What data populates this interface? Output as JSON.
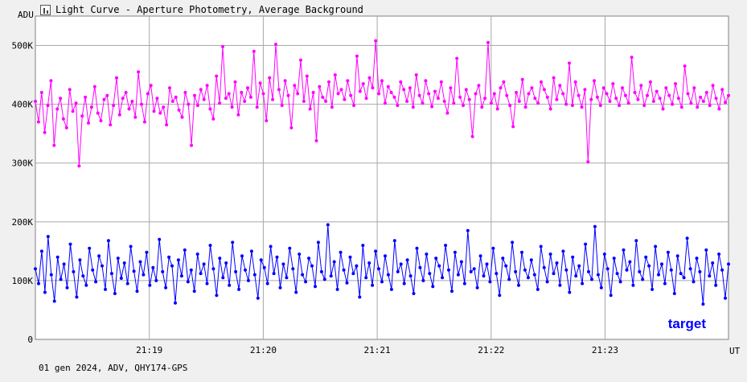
{
  "window": {
    "title": "Light Curve - Aperture Photometry, Average Background"
  },
  "icons": {
    "title_icon": "chart-icon"
  },
  "footer": {
    "text": "01 gen 2024, ADV, QHY174-GPS"
  },
  "chart_data": {
    "type": "line",
    "title": "Light Curve - Aperture Photometry, Average Background",
    "ylabel": "ADU",
    "xlabel": "UT",
    "ylim": [
      0,
      550000
    ],
    "xlim": [
      "21:18:00",
      "21:24:05"
    ],
    "grid": true,
    "y_ticks": [
      {
        "value": 0,
        "label": "0"
      },
      {
        "value": 100000,
        "label": "100K"
      },
      {
        "value": 200000,
        "label": "200K"
      },
      {
        "value": 300000,
        "label": "300K"
      },
      {
        "value": 400000,
        "label": "400K"
      },
      {
        "value": 500000,
        "label": "500K"
      }
    ],
    "x_ticks": [
      "21:19",
      "21:20",
      "21:21",
      "21:22",
      "21:23"
    ],
    "series": [
      {
        "name": "",
        "color": "#ff00ff",
        "x_start": "21:18:00",
        "x_end": "21:24:05",
        "values": [
          405000,
          370000,
          420000,
          352000,
          398000,
          440000,
          330000,
          392000,
          410000,
          375000,
          360000,
          425000,
          388000,
          402000,
          295000,
          380000,
          412000,
          368000,
          395000,
          430000,
          385000,
          372000,
          408000,
          415000,
          365000,
          398000,
          445000,
          382000,
          410000,
          420000,
          392000,
          405000,
          378000,
          455000,
          400000,
          370000,
          418000,
          432000,
          388000,
          410000,
          385000,
          395000,
          365000,
          428000,
          405000,
          412000,
          390000,
          378000,
          420000,
          400000,
          330000,
          415000,
          398000,
          425000,
          408000,
          432000,
          392000,
          375000,
          448000,
          402000,
          498000,
          410000,
          418000,
          395000,
          438000,
          382000,
          420000,
          405000,
          428000,
          412000,
          490000,
          395000,
          436000,
          418000,
          372000,
          445000,
          408000,
          502000,
          425000,
          398000,
          440000,
          415000,
          360000,
          432000,
          418000,
          475000,
          405000,
          448000,
          392000,
          420000,
          338000,
          430000,
          412000,
          405000,
          438000,
          395000,
          450000,
          418000,
          425000,
          408000,
          440000,
          415000,
          398000,
          482000,
          422000,
          435000,
          410000,
          445000,
          428000,
          508000,
          418000,
          440000,
          402000,
          430000,
          420000,
          412000,
          398000,
          438000,
          425000,
          405000,
          428000,
          395000,
          450000,
          415000,
          402000,
          440000,
          418000,
          396000,
          422000,
          410000,
          438000,
          405000,
          385000,
          428000,
          402000,
          478000,
          412000,
          398000,
          425000,
          408000,
          345000,
          418000,
          432000,
          395000,
          410000,
          505000,
          402000,
          418000,
          392000,
          428000,
          438000,
          415000,
          398000,
          362000,
          420000,
          405000,
          442000,
          395000,
          418000,
          428000,
          410000,
          402000,
          438000,
          425000,
          412000,
          392000,
          445000,
          408000,
          432000,
          418000,
          400000,
          470000,
          398000,
          438000,
          415000,
          395000,
          425000,
          302000,
          408000,
          440000,
          412000,
          398000,
          428000,
          418000,
          405000,
          435000,
          410000,
          398000,
          428000,
          415000,
          402000,
          480000,
          420000,
          408000,
          432000,
          398000,
          415000,
          438000,
          405000,
          422000,
          410000,
          392000,
          428000,
          415000,
          400000,
          435000,
          410000,
          395000,
          465000,
          418000,
          402000,
          428000,
          395000,
          412000,
          405000,
          420000,
          398000,
          432000,
          410000,
          392000,
          425000,
          403000,
          415000
        ]
      },
      {
        "name": "target",
        "color": "#0000ff",
        "x_start": "21:18:00",
        "x_end": "21:24:05",
        "values": [
          120000,
          95000,
          150000,
          80000,
          175000,
          110000,
          65000,
          140000,
          102000,
          128000,
          88000,
          162000,
          115000,
          72000,
          135000,
          108000,
          92000,
          155000,
          118000,
          98000,
          142000,
          125000,
          85000,
          168000,
          112000,
          78000,
          138000,
          104000,
          130000,
          95000,
          158000,
          116000,
          82000,
          132000,
          110000,
          148000,
          92000,
          122000,
          100000,
          170000,
          115000,
          88000,
          140000,
          125000,
          62000,
          135000,
          108000,
          152000,
          98000,
          118000,
          82000,
          145000,
          112000,
          128000,
          95000,
          160000,
          120000,
          75000,
          138000,
          105000,
          130000,
          92000,
          165000,
          115000,
          85000,
          142000,
          118000,
          100000,
          150000,
          110000,
          70000,
          135000,
          122000,
          95000,
          158000,
          112000,
          140000,
          88000,
          128000,
          105000,
          155000,
          120000,
          80000,
          145000,
          110000,
          98000,
          138000,
          125000,
          90000,
          165000,
          115000,
          102000,
          195000,
          108000,
          132000,
          85000,
          148000,
          118000,
          96000,
          140000,
          112000,
          125000,
          72000,
          160000,
          105000,
          130000,
          92000,
          150000,
          120000,
          98000,
          142000,
          110000,
          85000,
          168000,
          115000,
          128000,
          95000,
          135000,
          108000,
          78000,
          155000,
          122000,
          100000,
          145000,
          112000,
          90000,
          138000,
          125000,
          105000,
          160000,
          118000,
          82000,
          148000,
          110000,
          132000,
          95000,
          185000,
          115000,
          120000,
          88000,
          142000,
          108000,
          128000,
          98000,
          155000,
          112000,
          75000,
          138000,
          125000,
          102000,
          165000,
          115000,
          92000,
          148000,
          118000,
          105000,
          135000,
          110000,
          85000,
          158000,
          122000,
          98000,
          145000,
          112000,
          130000,
          92000,
          150000,
          118000,
          80000,
          140000,
          108000,
          125000,
          95000,
          162000,
          115000,
          102000,
          192000,
          110000,
          88000,
          145000,
          120000,
          75000,
          138000,
          112000,
          98000,
          152000,
          118000,
          132000,
          92000,
          168000,
          115000,
          102000,
          140000,
          125000,
          85000,
          158000,
          110000,
          128000,
          95000,
          148000,
          118000,
          78000,
          142000,
          112000,
          105000,
          172000,
          120000,
          98000,
          138000,
          115000,
          60000,
          152000,
          108000,
          130000,
          92000,
          145000,
          118000,
          70000,
          128000
        ]
      }
    ],
    "legend": {
      "label": "target",
      "color": "#0000ff",
      "position": "bottom-right"
    }
  }
}
